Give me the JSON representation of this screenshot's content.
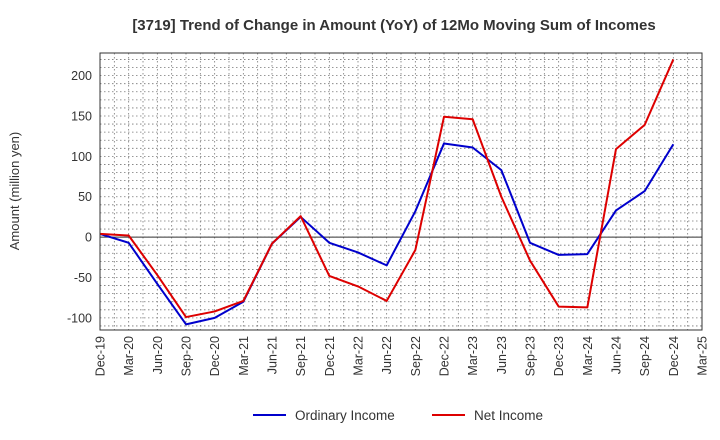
{
  "chart_data": {
    "type": "line",
    "title": "[3719]  Trend of Change in Amount (YoY) of 12Mo Moving Sum of Incomes",
    "xlabel": "",
    "ylabel": "Amount (million yen)",
    "ylim": [
      -115,
      228
    ],
    "yticks": [
      200,
      150,
      100,
      50,
      0,
      -50,
      -100
    ],
    "categories": [
      "Dec-19",
      "Mar-20",
      "Jun-20",
      "Sep-20",
      "Dec-20",
      "Mar-21",
      "Jun-21",
      "Sep-21",
      "Dec-21",
      "Mar-22",
      "Jun-22",
      "Sep-22",
      "Dec-22",
      "Mar-23",
      "Jun-23",
      "Sep-23",
      "Dec-23",
      "Mar-24",
      "Jun-24",
      "Sep-24",
      "Dec-24",
      "Mar-25"
    ],
    "grid": true,
    "legend_position": "bottom",
    "series": [
      {
        "name": "Ordinary Income",
        "color": "#0000cc",
        "values": [
          4,
          -7,
          -58,
          -108,
          -100,
          -80,
          -8,
          25,
          -7,
          -19,
          -35,
          32,
          116,
          111,
          83,
          -7,
          -22,
          -21,
          33,
          57,
          115,
          null
        ]
      },
      {
        "name": "Net Income",
        "color": "#dd0000",
        "values": [
          4,
          2,
          -47,
          -99,
          -92,
          -79,
          -8,
          26,
          -48,
          -61,
          -79,
          -16,
          149,
          146,
          50,
          -29,
          -86,
          -87,
          109,
          139,
          220,
          null
        ]
      }
    ]
  }
}
